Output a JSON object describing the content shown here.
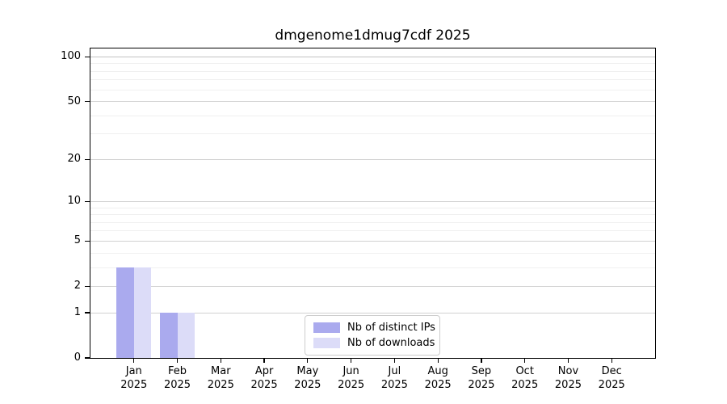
{
  "chart_data": {
    "type": "bar",
    "title": "dmgenome1dmug7cdf 2025",
    "year_label": "2025",
    "categories": [
      "Jan",
      "Feb",
      "Mar",
      "Apr",
      "May",
      "Jun",
      "Jul",
      "Aug",
      "Sep",
      "Oct",
      "Nov",
      "Dec"
    ],
    "series": [
      {
        "name": "Nb of distinct IPs",
        "color": "#aaaaee",
        "values": [
          3,
          1,
          0,
          0,
          0,
          0,
          0,
          0,
          0,
          0,
          0,
          0
        ]
      },
      {
        "name": "Nb of downloads",
        "color": "#dcdcf8",
        "values": [
          3,
          1,
          0,
          0,
          0,
          0,
          0,
          0,
          0,
          0,
          0,
          0
        ]
      }
    ],
    "xlabel": "",
    "ylabel": "",
    "y_scale": "log10(1+y)",
    "y_ticks": [
      0,
      1,
      2,
      5,
      10,
      20,
      50,
      100
    ],
    "y_minor_ticks": [
      3,
      4,
      6,
      7,
      8,
      9,
      30,
      40,
      60,
      70,
      80,
      90
    ],
    "ylim": [
      0,
      114
    ],
    "grid": true,
    "legend_position": "lower center"
  },
  "colors": {
    "background": "#ffffff",
    "axis": "#000000",
    "grid_major": "#d2d2d2",
    "grid_minor": "#f0f0f0",
    "legend_border": "#cccccc",
    "series_distinct_ips": "#aaaaee",
    "series_downloads": "#dcdcf8"
  }
}
